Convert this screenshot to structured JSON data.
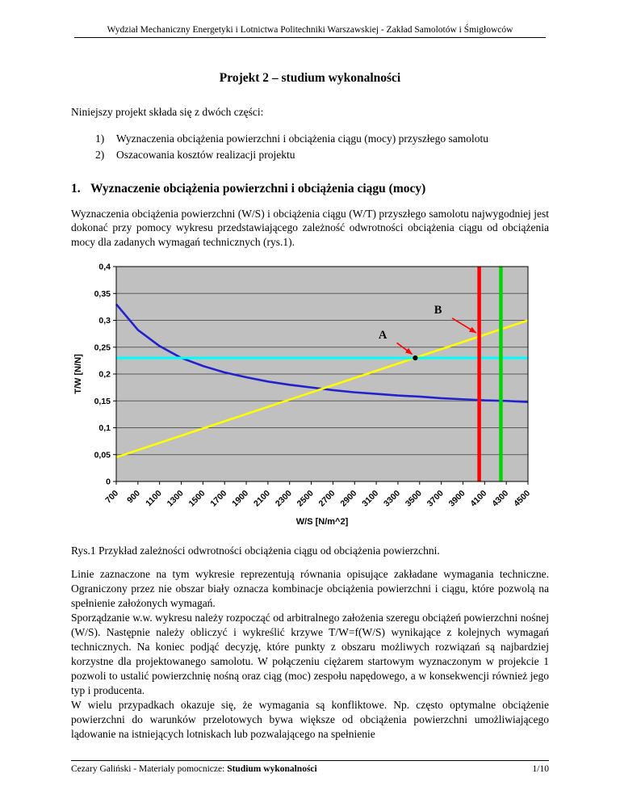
{
  "document": {
    "header": "Wydział Mechaniczny Energetyki i Lotnictwa Politechniki Warszawskiej - Zakład Samolotów i Śmigłowców",
    "title": "Projekt 2 – studium wykonalności",
    "intro": "Niniejszy projekt składa się z dwóch części:",
    "list": [
      {
        "num": "1)",
        "text": "Wyznaczenia obciążenia powierzchni i obciążenia ciągu (mocy) przyszłego samolotu"
      },
      {
        "num": "2)",
        "text": "Oszacowania kosztów realizacji projektu"
      }
    ],
    "section": {
      "num": "1.",
      "title": "Wyznaczenie obciążenia powierzchni i obciążenia ciągu (mocy)"
    },
    "para1": "Wyznaczenia obciążenia powierzchni (W/S) i obciążenia ciągu (W/T) przyszłego samolotu najwygodniej jest dokonać przy pomocy wykresu przedstawiającego zależność odwrotności obciążenia ciągu od obciążenia mocy dla zadanych wymagań technicznych (rys.1).",
    "caption": "Rys.1 Przykład zależności odwrotności obciążenia ciągu od obciążenia powierzchni.",
    "para2": "Linie zaznaczone na tym wykresie reprezentują równania opisujące zakładane wymagania techniczne. Ograniczony przez nie obszar biały oznacza kombinacje obciążenia powierzchni i ciągu, które pozwolą na spełnienie założonych wymagań.",
    "para3": "Sporządzanie w.w. wykresu należy rozpocząć od arbitralnego założenia szeregu obciążeń powierzchni nośnej (W/S). Następnie należy obliczyć i wykreślić krzywe T/W=f(W/S) wynikające z kolejnych wymagań technicznych. Na koniec podjąć decyzję, które punkty z obszaru możliwych rozwiązań są najbardziej korzystne dla projektowanego samolotu. W połączeniu ciężarem startowym wyznaczonym w projekcie 1 pozwoli to ustalić powierzchnię nośną oraz ciąg (moc) zespołu napędowego, a w konsekwencji również jego typ i producenta.",
    "para4": "W wielu przypadkach okazuje się, że wymagania są konfliktowe. Np. często optymalne obciążenie powierzchni do warunków przelotowych bywa większe od obciążenia powierzchni umożliwiającego lądowanie na istniejących lotniskach lub pozwalającego na spełnienie",
    "footer": {
      "left_normal": "Cezary Galiński - Materiały pomocnicze: ",
      "left_bold": "Studium wykonalności",
      "page_number": "1/10"
    }
  },
  "chart_data": {
    "type": "line",
    "title": "",
    "xlabel": "W/S [N/m^2]",
    "ylabel": "T/W [N/N]",
    "xlim": [
      700,
      4500
    ],
    "ylim": [
      0,
      0.4
    ],
    "x_ticks": [
      700,
      900,
      1100,
      1300,
      1500,
      1700,
      1900,
      2100,
      2300,
      2500,
      2700,
      2900,
      3100,
      3300,
      3500,
      3700,
      3900,
      4100,
      4300,
      4500
    ],
    "y_ticks": [
      0,
      0.05,
      0.1,
      0.15,
      0.2,
      0.25,
      0.3,
      0.35,
      0.4
    ],
    "y_tick_labels": [
      "0",
      "0,05",
      "0,1",
      "0,15",
      "0,2",
      "0,25",
      "0,3",
      "0,35",
      "0,4"
    ],
    "grid": "horizontal",
    "legend": "none",
    "plot_bg_color": "#c0c0c0",
    "grid_color": "#5a5a5a",
    "series": [
      {
        "name": "blue-constraint-curve",
        "color": "#2222cc",
        "width": 2.6,
        "x": [
          700,
          900,
          1100,
          1300,
          1500,
          1700,
          1900,
          2100,
          2300,
          2500,
          2700,
          2900,
          3100,
          3300,
          3500,
          3700,
          3900,
          4100,
          4300,
          4500
        ],
        "y": [
          0.33,
          0.282,
          0.252,
          0.23,
          0.215,
          0.203,
          0.194,
          0.186,
          0.18,
          0.175,
          0.17,
          0.166,
          0.163,
          0.16,
          0.158,
          0.155,
          0.153,
          0.151,
          0.15,
          0.148
        ]
      },
      {
        "name": "yellow-constraint-line",
        "color": "#ffff00",
        "width": 2.6,
        "x": [
          700,
          4500
        ],
        "y": [
          0.045,
          0.3
        ]
      },
      {
        "name": "cyan-horizontal-constraint",
        "color": "#00ffff",
        "width": 3.2,
        "x": [
          700,
          4500
        ],
        "y": [
          0.23,
          0.23
        ]
      },
      {
        "name": "red-vertical-constraint",
        "color": "#ff0000",
        "width": 4.5,
        "x": [
          4050,
          4050
        ],
        "y": [
          0,
          0.4
        ]
      },
      {
        "name": "green-vertical-constraint",
        "color": "#00d400",
        "width": 4.5,
        "x": [
          4250,
          4250
        ],
        "y": [
          0,
          0.4
        ]
      }
    ],
    "design_point": {
      "x": 3460,
      "y": 0.23,
      "color": "#000000"
    },
    "annotations": [
      {
        "label": "A",
        "label_x": 3160,
        "label_y": 0.266,
        "arrow": [
          [
            3290,
            0.258
          ],
          [
            3430,
            0.237
          ]
        ],
        "color": "#ff0000"
      },
      {
        "label": "B",
        "label_x": 3670,
        "label_y": 0.313,
        "arrow": [
          [
            3800,
            0.304
          ],
          [
            4020,
            0.277
          ]
        ],
        "color": "#ff0000"
      }
    ]
  }
}
